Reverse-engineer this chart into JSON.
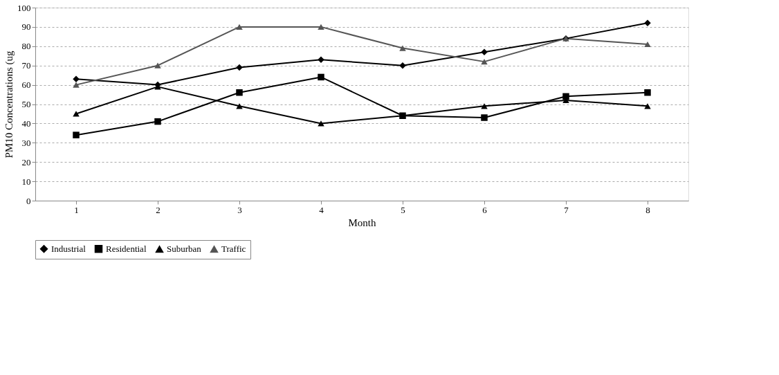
{
  "chart_data": {
    "type": "line",
    "xlabel": "Month",
    "ylabel": "PM10 Concentrations (ug",
    "categories": [
      "1",
      "2",
      "3",
      "4",
      "5",
      "6",
      "7",
      "8"
    ],
    "series": [
      {
        "name": "Industrial",
        "color": "#000000",
        "marker": "diamond",
        "values": [
          63,
          60,
          69,
          73,
          70,
          77,
          84,
          92
        ]
      },
      {
        "name": "Residential",
        "color": "#000000",
        "marker": "square",
        "values": [
          34,
          41,
          56,
          64,
          44,
          43,
          54,
          56
        ]
      },
      {
        "name": "Suburban",
        "color": "#000000",
        "marker": "triangle",
        "values": [
          45,
          59,
          49,
          40,
          44,
          49,
          52,
          49
        ]
      },
      {
        "name": "Traffic",
        "color": "#555555",
        "marker": "triangle",
        "values": [
          60,
          70,
          90,
          90,
          79,
          72,
          84,
          81
        ]
      }
    ],
    "ylim": [
      0,
      100
    ],
    "yticks": [
      0,
      10,
      20,
      30,
      40,
      50,
      60,
      70,
      80,
      90,
      100
    ],
    "grid": "y",
    "legend": "bottom",
    "line_style": "solid"
  }
}
